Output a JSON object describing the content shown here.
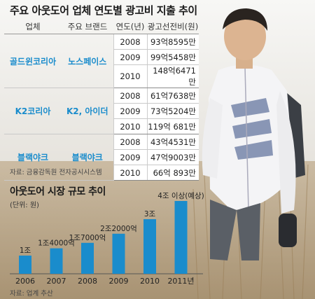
{
  "colors": {
    "accent": "#1a8ccc",
    "bar": "#1a8ccc"
  },
  "title": "주요 아웃도어 업체 연도별 광고비 지출 추이",
  "table": {
    "headers": [
      "업체",
      "주요 브랜드",
      "연도(년)",
      "광고선전비(원)"
    ],
    "groups": [
      {
        "company": "골드윈코리아",
        "brand": "노스페이스",
        "rows": [
          {
            "year": "2008",
            "value": "93억8595만"
          },
          {
            "year": "2009",
            "value": "99억5458만"
          },
          {
            "year": "2010",
            "value": "148억6471만"
          }
        ]
      },
      {
        "company": "K2코리아",
        "brand": "K2, 아이더",
        "rows": [
          {
            "year": "2008",
            "value": "61억7638만"
          },
          {
            "year": "2009",
            "value": "73억5204만"
          },
          {
            "year": "2010",
            "value": "119억 681만"
          }
        ]
      },
      {
        "company": "블랙야크",
        "brand": "블랙야크",
        "rows": [
          {
            "year": "2008",
            "value": "43억4531만"
          },
          {
            "year": "2009",
            "value": "47억9003만"
          },
          {
            "year": "2010",
            "value": "66억 893만"
          }
        ]
      }
    ],
    "source": "자료: 금융감독원 전자공시시스템"
  },
  "market": {
    "title": "아웃도어 시장 규모 추이",
    "unit": "(단위: 원)",
    "source": "자료: 업계 추산"
  },
  "chart_data": {
    "type": "bar",
    "title": "아웃도어 시장 규모 추이",
    "categories": [
      "2006",
      "2007",
      "2008",
      "2009",
      "2010",
      "2011년"
    ],
    "values": [
      10000,
      14000,
      17000,
      22000,
      30000,
      40000
    ],
    "value_unit": "억 원",
    "data_labels": [
      "1조",
      "1조4000억",
      "1조7000억",
      "2조2000억",
      "3조",
      "4조 이상(예상)"
    ],
    "ylim": [
      0,
      40000
    ],
    "grid": false
  }
}
